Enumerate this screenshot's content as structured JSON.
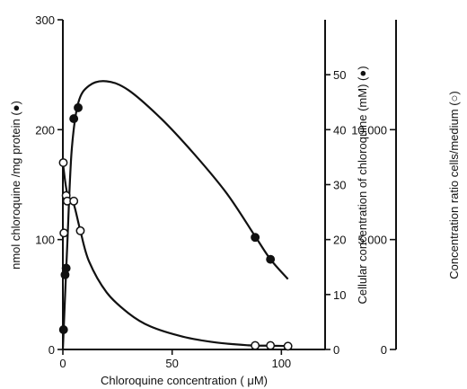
{
  "chart_data": {
    "type": "scatter",
    "xlabel": "Chloroquine concentration ( μM)",
    "x_ticks": [
      "0",
      "50",
      "100"
    ],
    "x_tick_values": [
      0,
      50,
      100
    ],
    "xlim": [
      0,
      120
    ],
    "axes": {
      "left": {
        "label": "nmol chloroquine /mg protein (●)",
        "ticks": [
          "0",
          "100",
          "200",
          "300"
        ],
        "tick_values": [
          0,
          100,
          200,
          300
        ],
        "ylim": [
          0,
          300
        ]
      },
      "right_inner": {
        "label": "Cellular concentration of chloroquine (mM) (●)",
        "ticks": [
          "0",
          "10",
          "20",
          "30",
          "40",
          "50"
        ],
        "tick_values": [
          0,
          10,
          20,
          30,
          40,
          50
        ],
        "ylim": [
          0,
          60
        ]
      },
      "right_outer": {
        "label": "Concentration ratio cells/medium (○)",
        "ticks": [
          "0",
          "5,000",
          "10,000"
        ],
        "tick_values": [
          0,
          5000,
          10000
        ],
        "ylim": [
          0,
          15000
        ]
      }
    },
    "series": [
      {
        "marker": "filled-circle",
        "axis": "left",
        "points": [
          [
            0.3,
            18
          ],
          [
            1,
            68
          ],
          [
            1.5,
            74
          ],
          [
            5,
            210
          ],
          [
            7,
            220
          ],
          [
            88,
            102
          ],
          [
            95,
            82
          ]
        ],
        "curve": [
          [
            0,
            0
          ],
          [
            2,
            95
          ],
          [
            4,
            180
          ],
          [
            7,
            224
          ],
          [
            12,
            240
          ],
          [
            20,
            244
          ],
          [
            30,
            236
          ],
          [
            45,
            210
          ],
          [
            60,
            178
          ],
          [
            75,
            142
          ],
          [
            88,
            103
          ],
          [
            95,
            82
          ],
          [
            103,
            64
          ]
        ]
      },
      {
        "marker": "open-circle",
        "axis": "right_outer",
        "points": [
          [
            0.2,
            8500
          ],
          [
            0.5,
            5300
          ],
          [
            1.5,
            7000
          ],
          [
            2,
            6750
          ],
          [
            5,
            6750
          ],
          [
            8,
            5400
          ],
          [
            88,
            180
          ],
          [
            95,
            180
          ],
          [
            103,
            150
          ]
        ],
        "curve": [
          [
            0,
            8500
          ],
          [
            2,
            7100
          ],
          [
            5,
            6600
          ],
          [
            8,
            5400
          ],
          [
            12,
            4000
          ],
          [
            20,
            2600
          ],
          [
            30,
            1650
          ],
          [
            40,
            1050
          ],
          [
            55,
            580
          ],
          [
            70,
            320
          ],
          [
            85,
            190
          ],
          [
            95,
            170
          ],
          [
            105,
            150
          ]
        ]
      }
    ]
  }
}
